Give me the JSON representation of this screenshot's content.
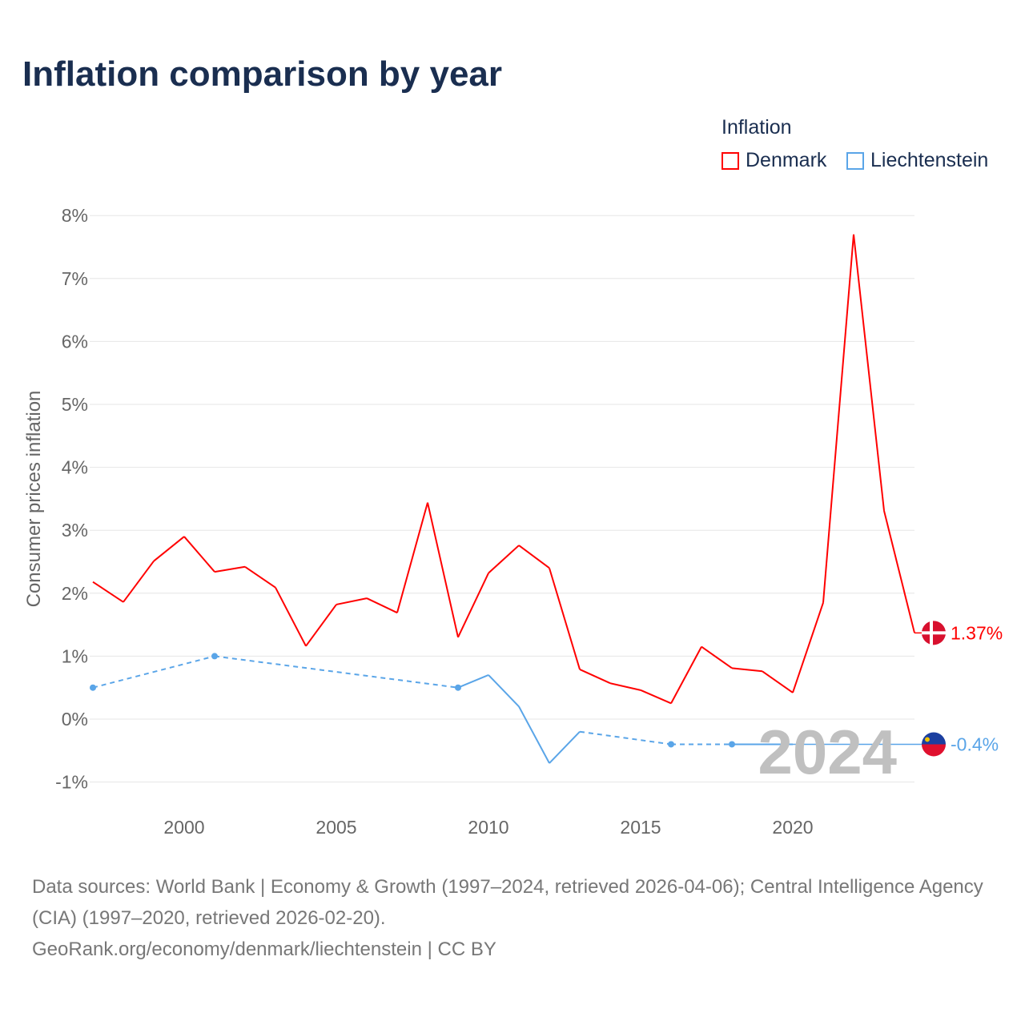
{
  "chart_data": {
    "type": "line",
    "title": "Inflation comparison by year",
    "ylabel": "Consumer prices inflation",
    "xlabel": "",
    "xlim": [
      1997,
      2024
    ],
    "ylim": [
      -1,
      8
    ],
    "yticks": [
      -1,
      0,
      1,
      2,
      3,
      4,
      5,
      6,
      7,
      8
    ],
    "ytick_labels": [
      "-1%",
      "0%",
      "1%",
      "2%",
      "3%",
      "4%",
      "5%",
      "6%",
      "7%",
      "8%"
    ],
    "xticks": [
      2000,
      2005,
      2010,
      2015,
      2020
    ],
    "xtick_labels": [
      "2000",
      "2005",
      "2010",
      "2015",
      "2020"
    ],
    "legend_title": "Inflation",
    "legend_position": "top-right",
    "year_watermark": "2024",
    "series": [
      {
        "name": "Denmark",
        "color": "#ff0000",
        "end_label": "1.37%",
        "x": [
          1997,
          1998,
          1999,
          2000,
          2001,
          2002,
          2003,
          2004,
          2005,
          2006,
          2007,
          2008,
          2009,
          2010,
          2011,
          2012,
          2013,
          2014,
          2015,
          2016,
          2017,
          2018,
          2019,
          2020,
          2021,
          2022,
          2023,
          2024
        ],
        "values": [
          2.18,
          1.86,
          2.51,
          2.9,
          2.34,
          2.42,
          2.09,
          1.16,
          1.82,
          1.92,
          1.69,
          3.44,
          1.3,
          2.32,
          2.76,
          2.4,
          0.79,
          0.57,
          0.46,
          0.25,
          1.15,
          0.81,
          0.76,
          0.42,
          1.85,
          7.7,
          3.31,
          1.37
        ]
      },
      {
        "name": "Liechtenstein",
        "color": "#5aa5e8",
        "end_label": "-0.4%",
        "x": [
          1997,
          2001,
          2009,
          2010,
          2011,
          2012,
          2013,
          2016,
          2018,
          2019,
          2020
        ],
        "values": [
          0.5,
          1.0,
          0.5,
          0.7,
          0.2,
          -0.7,
          -0.2,
          -0.4,
          -0.4,
          -0.4,
          -0.4
        ]
      }
    ]
  },
  "sources": {
    "line1": "Data sources: World Bank | Economy & Growth (1997–2024, retrieved 2026-04-06); Central Intelligence Agency (CIA) (1997–2020, retrieved 2026-02-20).",
    "line2": "GeoRank.org/economy/denmark/liechtenstein | CC BY"
  }
}
